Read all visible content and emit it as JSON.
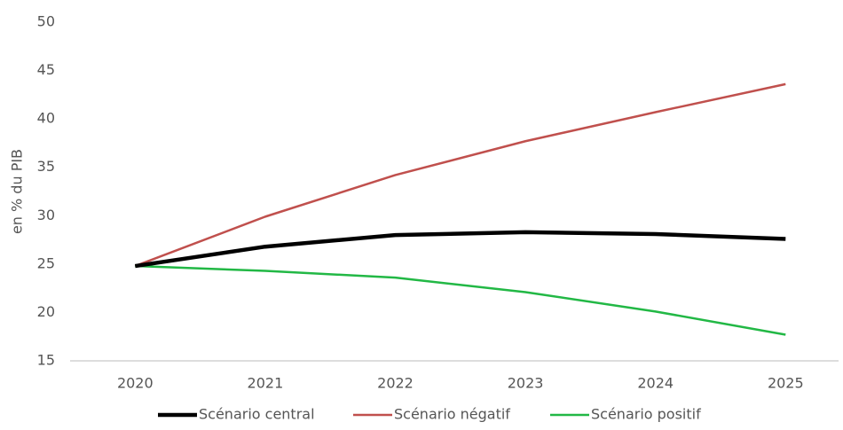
{
  "chart_data": {
    "type": "line",
    "y_label": "en % du PIB",
    "categories": [
      "2020",
      "2021",
      "2022",
      "2023",
      "2024",
      "2025"
    ],
    "series": [
      {
        "name": "Scénario central",
        "color": "#000000",
        "values": [
          24.8,
          26.8,
          28.0,
          28.3,
          28.1,
          27.6
        ]
      },
      {
        "name": "Scénario négatif",
        "color": "#c0504d",
        "values": [
          24.8,
          29.9,
          34.2,
          37.7,
          40.7,
          43.6
        ]
      },
      {
        "name": "Scénario positif",
        "color": "#22b845",
        "values": [
          24.8,
          24.3,
          23.6,
          22.1,
          20.1,
          17.7
        ]
      }
    ],
    "ylim": [
      15,
      50
    ],
    "yticks": [
      15,
      20,
      25,
      30,
      35,
      40,
      45,
      50
    ],
    "grid": false,
    "legend": "bottom"
  }
}
